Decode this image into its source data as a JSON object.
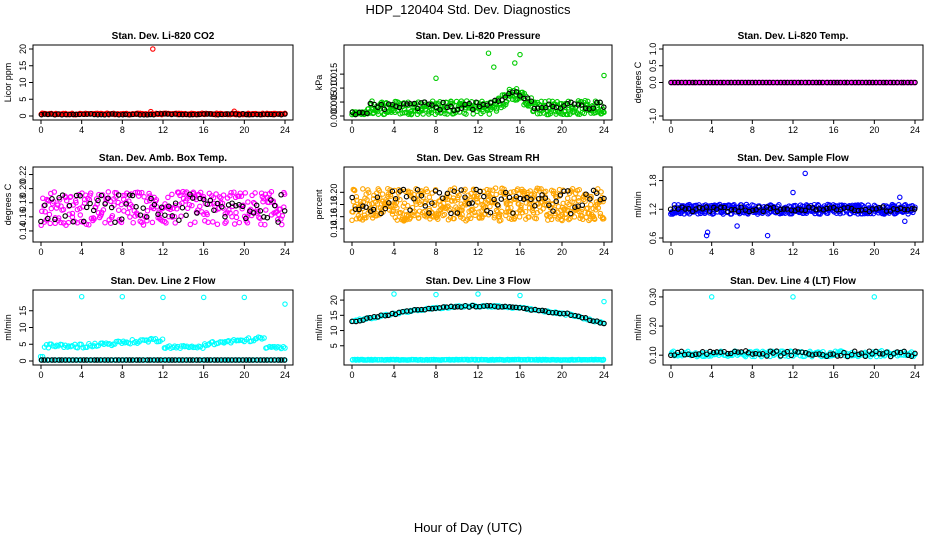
{
  "figure": {
    "title": "HDP_120404  Std. Dev. Diagnostics",
    "xlabel": "Hour of Day (UTC)"
  },
  "colors": {
    "black": "#000000",
    "red": "#ff0000",
    "green": "#00cc00",
    "magenta": "#ff00ff",
    "orange": "#ffa500",
    "blue": "#0000ff",
    "cyan": "#00ffff"
  },
  "chart_data": [
    {
      "type": "scatter",
      "title": "Stan. Dev. Li-820 CO2",
      "ylabel": "Licor ppm",
      "xlim": [
        0,
        24
      ],
      "ylim": [
        0,
        20
      ],
      "xticks": [
        "0",
        "4",
        "8",
        "12",
        "16",
        "20",
        "24"
      ],
      "yticks": [
        "0",
        "5",
        "10",
        "15",
        "20"
      ],
      "series": [
        {
          "name": "red",
          "color": "red",
          "kind": "const",
          "base": 0.6,
          "spread": 0.2,
          "n": 220,
          "outliers": [
            [
              11.0,
              20.0
            ],
            [
              10.8,
              1.3
            ],
            [
              19.0,
              1.4
            ]
          ]
        },
        {
          "name": "black",
          "color": "black",
          "kind": "const",
          "base": 0.5,
          "spread": 0.15,
          "n": 70
        }
      ]
    },
    {
      "type": "scatter",
      "title": "Stan. Dev. Li-820 Pressure",
      "ylabel": "kPa",
      "xlim": [
        0,
        24
      ],
      "ylim": [
        0,
        0.024
      ],
      "xticks": [
        "0",
        "4",
        "8",
        "12",
        "16",
        "20",
        "24"
      ],
      "yticks": [
        "0.000",
        "0.005",
        "0.010",
        "0.015"
      ],
      "series": [
        {
          "name": "green",
          "color": "green",
          "kind": "pressure",
          "base": 0.003,
          "spread": 0.0025,
          "n": 380,
          "outliers": [
            [
              8.0,
              0.0135
            ],
            [
              13.0,
              0.0225
            ],
            [
              16.0,
              0.022
            ],
            [
              24.0,
              0.0145
            ],
            [
              13.5,
              0.0175
            ],
            [
              15.5,
              0.019
            ]
          ]
        },
        {
          "name": "black",
          "color": "black",
          "kind": "pressure",
          "base": 0.0035,
          "spread": 0.0015,
          "n": 70
        }
      ]
    },
    {
      "type": "scatter",
      "title": "Stan. Dev. Li-820 Temp.",
      "ylabel": "degrees C",
      "xlim": [
        0,
        24
      ],
      "ylim": [
        -1,
        1
      ],
      "xticks": [
        "0",
        "4",
        "8",
        "12",
        "16",
        "20",
        "24"
      ],
      "yticks": [
        "-1.0",
        "0.0",
        "0.5",
        "1.0"
      ],
      "series": [
        {
          "name": "magenta",
          "color": "magenta",
          "kind": "const",
          "base": 0.0,
          "spread": 0.0,
          "n": 220
        },
        {
          "name": "black",
          "color": "black",
          "kind": "const",
          "base": 0.0,
          "spread": 0.0,
          "n": 70
        }
      ]
    },
    {
      "type": "scatter",
      "title": "Stan. Dev. Amb. Box Temp.",
      "ylabel": "degrees C",
      "xlim": [
        0,
        24
      ],
      "ylim": [
        0.13,
        0.225
      ],
      "xticks": [
        "0",
        "4",
        "8",
        "12",
        "16",
        "20",
        "24"
      ],
      "yticks": [
        "0.14",
        "0.16",
        "0.18",
        "0.20",
        "0.22"
      ],
      "series": [
        {
          "name": "magenta",
          "color": "magenta",
          "kind": "const",
          "base": 0.172,
          "spread": 0.024,
          "n": 300
        },
        {
          "name": "black",
          "color": "black",
          "kind": "const",
          "base": 0.172,
          "spread": 0.02,
          "n": 70
        }
      ]
    },
    {
      "type": "scatter",
      "title": "Stan. Dev. Gas Stream RH",
      "ylabel": "percent",
      "xlim": [
        0,
        24
      ],
      "ylim": [
        0.125,
        0.235
      ],
      "xticks": [
        "0",
        "4",
        "8",
        "12",
        "16",
        "20",
        "24"
      ],
      "yticks": [
        "0.14",
        "0.16",
        "0.18",
        "0.20"
      ],
      "series": [
        {
          "name": "orange",
          "color": "orange",
          "kind": "const",
          "base": 0.18,
          "spread": 0.027,
          "n": 520
        },
        {
          "name": "black",
          "color": "black",
          "kind": "const",
          "base": 0.185,
          "spread": 0.02,
          "n": 70
        }
      ]
    },
    {
      "type": "scatter",
      "title": "Stan. Dev. Sample Flow",
      "ylabel": "ml/min",
      "xlim": [
        0,
        24
      ],
      "ylim": [
        0.6,
        2.0
      ],
      "xticks": [
        "0",
        "4",
        "8",
        "12",
        "16",
        "20",
        "24"
      ],
      "yticks": [
        "0.6",
        "1.2",
        "1.8"
      ],
      "series": [
        {
          "name": "blue",
          "color": "blue",
          "kind": "const",
          "base": 1.2,
          "spread": 0.1,
          "n": 420,
          "outliers": [
            [
              3.5,
              0.65
            ],
            [
              3.6,
              0.72
            ],
            [
              13.2,
              1.95
            ],
            [
              12.0,
              1.55
            ],
            [
              6.5,
              0.85
            ],
            [
              9.5,
              0.65
            ],
            [
              23.0,
              0.95
            ],
            [
              22.5,
              1.45
            ]
          ]
        },
        {
          "name": "black",
          "color": "black",
          "kind": "const",
          "base": 1.2,
          "spread": 0.05,
          "n": 70
        }
      ]
    },
    {
      "type": "scatter",
      "title": "Stan. Dev. Line 2 Flow",
      "ylabel": "ml/min",
      "xlim": [
        0,
        24
      ],
      "ylim": [
        0,
        20
      ],
      "xticks": [
        "0",
        "4",
        "8",
        "12",
        "16",
        "20",
        "24"
      ],
      "yticks": [
        "0",
        "5",
        "10",
        "15"
      ],
      "series": [
        {
          "name": "cyan-high",
          "color": "cyan",
          "kind": "points",
          "points": [
            [
              4.0,
              19.2
            ],
            [
              8.0,
              19.2
            ],
            [
              12.0,
              19.0
            ],
            [
              16.0,
              19.0
            ],
            [
              20.0,
              19.0
            ],
            [
              24.0,
              17.0
            ]
          ]
        },
        {
          "name": "cyan",
          "color": "cyan",
          "kind": "line2",
          "n": 140
        },
        {
          "name": "cyan-low",
          "color": "cyan",
          "kind": "const",
          "base": 0.3,
          "spread": 0.0,
          "n": 120
        },
        {
          "name": "black",
          "color": "black",
          "kind": "const",
          "base": 0.3,
          "spread": 0.0,
          "n": 70
        }
      ]
    },
    {
      "type": "scatter",
      "title": "Stan. Dev. Line 3 Flow",
      "ylabel": "ml/min",
      "xlim": [
        0,
        24
      ],
      "ylim": [
        0,
        22
      ],
      "xticks": [
        "0",
        "4",
        "8",
        "12",
        "16",
        "20",
        "24"
      ],
      "yticks": [
        "5",
        "10",
        "15",
        "20"
      ],
      "series": [
        {
          "name": "cyan-high",
          "color": "cyan",
          "kind": "points",
          "points": [
            [
              4.0,
              22.0
            ],
            [
              8.0,
              21.8
            ],
            [
              12.0,
              22.0
            ],
            [
              16.0,
              21.5
            ],
            [
              24.0,
              19.5
            ]
          ]
        },
        {
          "name": "cyan",
          "color": "cyan",
          "kind": "arc",
          "n": 140
        },
        {
          "name": "cyan-low",
          "color": "cyan",
          "kind": "const",
          "base": 0.4,
          "spread": 0.1,
          "n": 200
        },
        {
          "name": "black",
          "color": "black",
          "kind": "arc",
          "n": 70
        }
      ]
    },
    {
      "type": "scatter",
      "title": "Stan. Dev. Line 4 (LT) Flow",
      "ylabel": "ml/min",
      "xlim": [
        0,
        24
      ],
      "ylim": [
        0.08,
        0.31
      ],
      "xticks": [
        "0",
        "4",
        "8",
        "12",
        "16",
        "20",
        "24"
      ],
      "yticks": [
        "0.10",
        "0.20",
        "0.30"
      ],
      "series": [
        {
          "name": "cyan-high",
          "color": "cyan",
          "kind": "points",
          "points": [
            [
              4.0,
              0.3
            ],
            [
              12.0,
              0.3
            ],
            [
              20.0,
              0.3
            ]
          ]
        },
        {
          "name": "cyan",
          "color": "cyan",
          "kind": "const",
          "base": 0.105,
          "spread": 0.01,
          "n": 200
        },
        {
          "name": "black",
          "color": "black",
          "kind": "const",
          "base": 0.105,
          "spread": 0.01,
          "n": 70
        }
      ]
    }
  ]
}
